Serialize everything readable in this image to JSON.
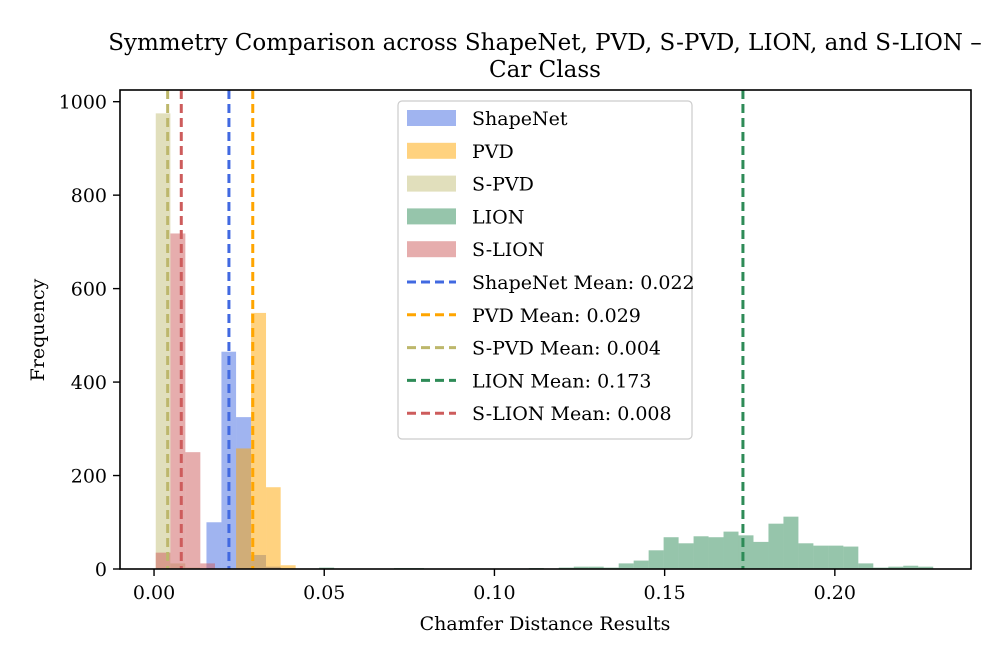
{
  "chart_data": {
    "type": "histogram",
    "title_lines": [
      "Symmetry Comparison across ShapeNet, PVD, S-PVD, LION, and S-LION –",
      "Car Class"
    ],
    "xlabel": "Chamfer Distance Results",
    "ylabel": "Frequency",
    "xlim": [
      -0.01,
      0.24
    ],
    "ylim": [
      0,
      1025
    ],
    "xticks": [
      0.0,
      0.05,
      0.1,
      0.15,
      0.2
    ],
    "xtick_labels": [
      "0.00",
      "0.05",
      "0.10",
      "0.15",
      "0.20"
    ],
    "yticks": [
      0,
      200,
      400,
      600,
      800,
      1000
    ],
    "ytick_labels": [
      "0",
      "200",
      "400",
      "600",
      "800",
      "1000"
    ],
    "series": [
      {
        "name": "ShapeNet",
        "color": "#4169e1",
        "opacity": 0.5,
        "bins": [
          {
            "x0": 0.0154,
            "x1": 0.0198,
            "y": 100
          },
          {
            "x0": 0.0198,
            "x1": 0.0241,
            "y": 465
          },
          {
            "x0": 0.0241,
            "x1": 0.0285,
            "y": 325
          },
          {
            "x0": 0.0285,
            "x1": 0.0329,
            "y": 30
          },
          {
            "x0": 0.0329,
            "x1": 0.0372,
            "y": 5
          }
        ]
      },
      {
        "name": "PVD",
        "color": "#ffa500",
        "opacity": 0.5,
        "bins": [
          {
            "x0": 0.0241,
            "x1": 0.0285,
            "y": 258
          },
          {
            "x0": 0.0285,
            "x1": 0.0329,
            "y": 548
          },
          {
            "x0": 0.0329,
            "x1": 0.0372,
            "y": 175
          },
          {
            "x0": 0.0372,
            "x1": 0.0416,
            "y": 8
          }
        ]
      },
      {
        "name": "S-PVD",
        "color": "#bdb76b",
        "opacity": 0.45,
        "bins": [
          {
            "x0": 0.0005,
            "x1": 0.0048,
            "y": 975
          },
          {
            "x0": 0.0048,
            "x1": 0.0092,
            "y": 12
          },
          {
            "x0": 0.0092,
            "x1": 0.0136,
            "y": 3
          }
        ]
      },
      {
        "name": "LION",
        "color": "#2e8b57",
        "opacity": 0.5,
        "bins": [
          {
            "x0": 0.0485,
            "x1": 0.0529,
            "y": 3
          },
          {
            "x0": 0.0705,
            "x1": 0.0749,
            "y": 2
          },
          {
            "x0": 0.0749,
            "x1": 0.0793,
            "y": 2
          },
          {
            "x0": 0.1101,
            "x1": 0.1145,
            "y": 2
          },
          {
            "x0": 0.1189,
            "x1": 0.1233,
            "y": 3
          },
          {
            "x0": 0.1233,
            "x1": 0.1277,
            "y": 5
          },
          {
            "x0": 0.1277,
            "x1": 0.1321,
            "y": 5
          },
          {
            "x0": 0.1321,
            "x1": 0.1365,
            "y": 3
          },
          {
            "x0": 0.1365,
            "x1": 0.1409,
            "y": 12
          },
          {
            "x0": 0.1409,
            "x1": 0.1453,
            "y": 18
          },
          {
            "x0": 0.1453,
            "x1": 0.1497,
            "y": 40
          },
          {
            "x0": 0.1497,
            "x1": 0.1541,
            "y": 68
          },
          {
            "x0": 0.1541,
            "x1": 0.1585,
            "y": 55
          },
          {
            "x0": 0.1585,
            "x1": 0.1629,
            "y": 70
          },
          {
            "x0": 0.1629,
            "x1": 0.1673,
            "y": 68
          },
          {
            "x0": 0.1673,
            "x1": 0.1717,
            "y": 80
          },
          {
            "x0": 0.1717,
            "x1": 0.1761,
            "y": 72
          },
          {
            "x0": 0.1761,
            "x1": 0.1805,
            "y": 58
          },
          {
            "x0": 0.1805,
            "x1": 0.1849,
            "y": 97
          },
          {
            "x0": 0.1849,
            "x1": 0.1893,
            "y": 112
          },
          {
            "x0": 0.1893,
            "x1": 0.1937,
            "y": 55
          },
          {
            "x0": 0.1937,
            "x1": 0.1981,
            "y": 50
          },
          {
            "x0": 0.1981,
            "x1": 0.2025,
            "y": 50
          },
          {
            "x0": 0.2025,
            "x1": 0.2069,
            "y": 48
          },
          {
            "x0": 0.2069,
            "x1": 0.2113,
            "y": 12
          },
          {
            "x0": 0.2113,
            "x1": 0.2157,
            "y": 3
          },
          {
            "x0": 0.2157,
            "x1": 0.2201,
            "y": 5
          },
          {
            "x0": 0.2201,
            "x1": 0.2245,
            "y": 7
          },
          {
            "x0": 0.2245,
            "x1": 0.2289,
            "y": 5
          }
        ]
      },
      {
        "name": "S-LION",
        "color": "#cd5c5c",
        "opacity": 0.5,
        "bins": [
          {
            "x0": 0.0005,
            "x1": 0.0048,
            "y": 35
          },
          {
            "x0": 0.0048,
            "x1": 0.0092,
            "y": 718
          },
          {
            "x0": 0.0092,
            "x1": 0.0136,
            "y": 250
          },
          {
            "x0": 0.0136,
            "x1": 0.0179,
            "y": 12
          }
        ]
      }
    ],
    "mean_lines": [
      {
        "name": "ShapeNet Mean: 0.022",
        "value": 0.022,
        "color": "#4169e1"
      },
      {
        "name": "PVD Mean: 0.029",
        "value": 0.029,
        "color": "#ffa500"
      },
      {
        "name": "S-PVD Mean: 0.004",
        "value": 0.004,
        "color": "#bdb76b"
      },
      {
        "name": "LION Mean: 0.173",
        "value": 0.173,
        "color": "#2e8b57"
      },
      {
        "name": "S-LION Mean: 0.008",
        "value": 0.008,
        "color": "#cd5c5c"
      }
    ],
    "legend_position": "upper-center"
  }
}
